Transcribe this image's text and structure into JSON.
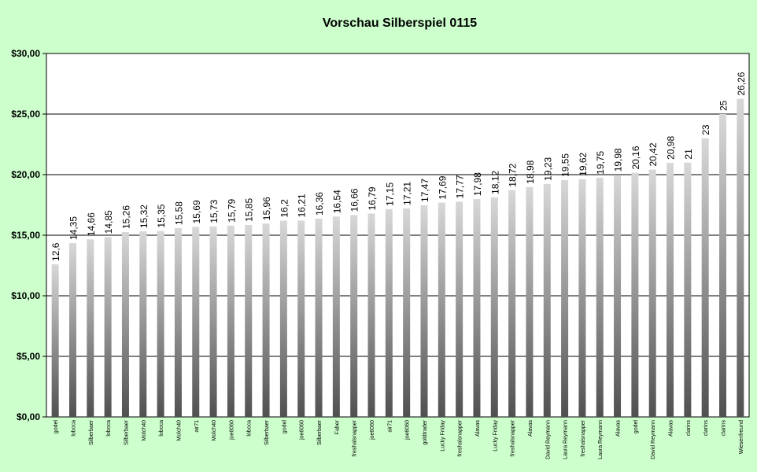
{
  "chart_data": {
    "type": "bar",
    "title": "Vorschau Silberspiel 0115",
    "xlabel": "",
    "ylabel": "",
    "ylim": [
      0,
      30
    ],
    "y_ticks": [
      0,
      5,
      10,
      15,
      20,
      25,
      30
    ],
    "y_tick_labels": [
      "$0,00",
      "$5,00",
      "$10,00",
      "$15,00",
      "$20,00",
      "$25,00",
      "$30,00"
    ],
    "grid": true,
    "legend": "none",
    "categories": [
      "godel",
      "loboca",
      "Silberbaer",
      "loboca",
      "Silberbaer",
      "Molch40",
      "loboca",
      "Molch40",
      "air71",
      "Molch40",
      "joe6060",
      "loboca",
      "Silberbaer",
      "godel",
      "joe6060",
      "Silberbaer",
      "Faber",
      "freshalsnapper",
      "joe6060",
      "air71",
      "joe6060",
      "goldtrader",
      "Lucky Friday",
      "freshalsnapper",
      "Alavas",
      "Lucky Friday",
      "freshalsnapper",
      "Alavas",
      "David Reymann",
      "Laura Reymann",
      "freshalsnapper",
      "Laura Reymann",
      "Alavas",
      "godel",
      "David Reymann",
      "Alavas",
      "clarins",
      "clarins",
      "clarins",
      "Wiesenfreund"
    ],
    "values": [
      12.6,
      14.35,
      14.66,
      14.85,
      15.26,
      15.32,
      15.35,
      15.58,
      15.69,
      15.73,
      15.79,
      15.85,
      15.96,
      16.2,
      16.21,
      16.36,
      16.54,
      16.66,
      16.79,
      17.15,
      17.21,
      17.47,
      17.69,
      17.77,
      17.98,
      18.12,
      18.72,
      18.98,
      19.23,
      19.55,
      19.62,
      19.75,
      19.98,
      20.16,
      20.42,
      20.98,
      21,
      23,
      25,
      26.26
    ],
    "value_labels": [
      "12,6",
      "14,35",
      "14,66",
      "14,85",
      "15,26",
      "15,32",
      "15,35",
      "15,58",
      "15,69",
      "15,73",
      "15,79",
      "15,85",
      "15,96",
      "16,2",
      "16,21",
      "16,36",
      "16,54",
      "16,66",
      "16,79",
      "17,15",
      "17,21",
      "17,47",
      "17,69",
      "17,77",
      "17,98",
      "18,12",
      "18,72",
      "18,98",
      "19,23",
      "19,55",
      "19,62",
      "19,75",
      "19,98",
      "20,16",
      "20,42",
      "20,98",
      "21",
      "23",
      "25",
      "26,26"
    ],
    "colors": {
      "background": "#ccffcc",
      "plot_area": "#ffffff",
      "grid": "#000000",
      "bar_light": "#d8d8d8",
      "bar_dark": "#505050"
    }
  }
}
